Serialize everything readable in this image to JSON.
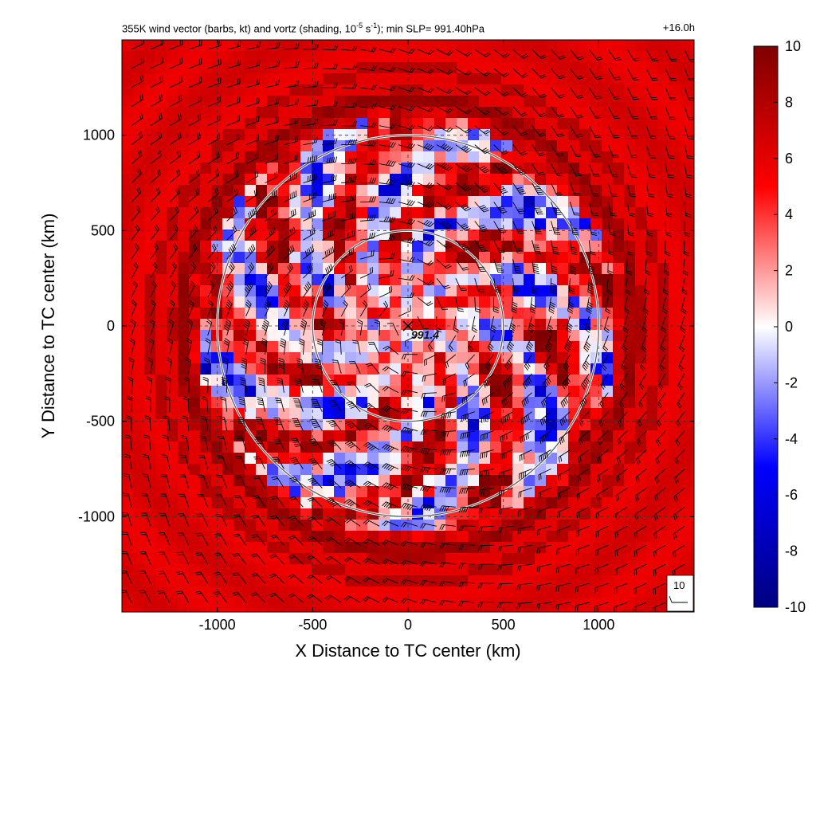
{
  "header": {
    "title_main": "355K wind vector (barbs, kt) and vortz (shading, 10",
    "title_exp1": "-5",
    "title_mid": " s",
    "title_exp2": "-1",
    "title_tail": "); min SLP= 991.40hPa",
    "forecast_hour": "+16.0h"
  },
  "chart_data": {
    "type": "heatmap",
    "xlabel": "X Distance to TC center (km)",
    "ylabel": "Y Distance to TC center (km)",
    "xlim": [
      -1500,
      1500
    ],
    "ylim": [
      -1500,
      1500
    ],
    "x_ticks": [
      -1000,
      -500,
      0,
      500,
      1000
    ],
    "y_ticks": [
      -1000,
      -500,
      0,
      500,
      1000
    ],
    "x_tick_labels": [
      "-1000",
      "-500",
      "0",
      "500",
      "1000"
    ],
    "y_tick_labels": [
      "-1000",
      "-500",
      "0",
      "500",
      "1000"
    ],
    "grid": "dashed",
    "range_rings_km": [
      500,
      1000
    ],
    "center": {
      "x": 0,
      "y": 0,
      "marker": "x",
      "label": "991.4"
    },
    "colorbar": {
      "min": -10,
      "max": 10,
      "ticks": [
        10,
        8,
        6,
        4,
        2,
        0,
        -2,
        -4,
        -6,
        -8,
        -10
      ],
      "tick_labels": [
        "10",
        "8",
        "6",
        "4",
        "2",
        "0",
        "-2",
        "-4",
        "-6",
        "-8",
        "-10"
      ],
      "colors": [
        "#00007f",
        "#0000ff",
        "#ffffff",
        "#ff0000",
        "#7f0000"
      ]
    },
    "reference_barb_label": "10",
    "barb_spacing_km": 100
  }
}
